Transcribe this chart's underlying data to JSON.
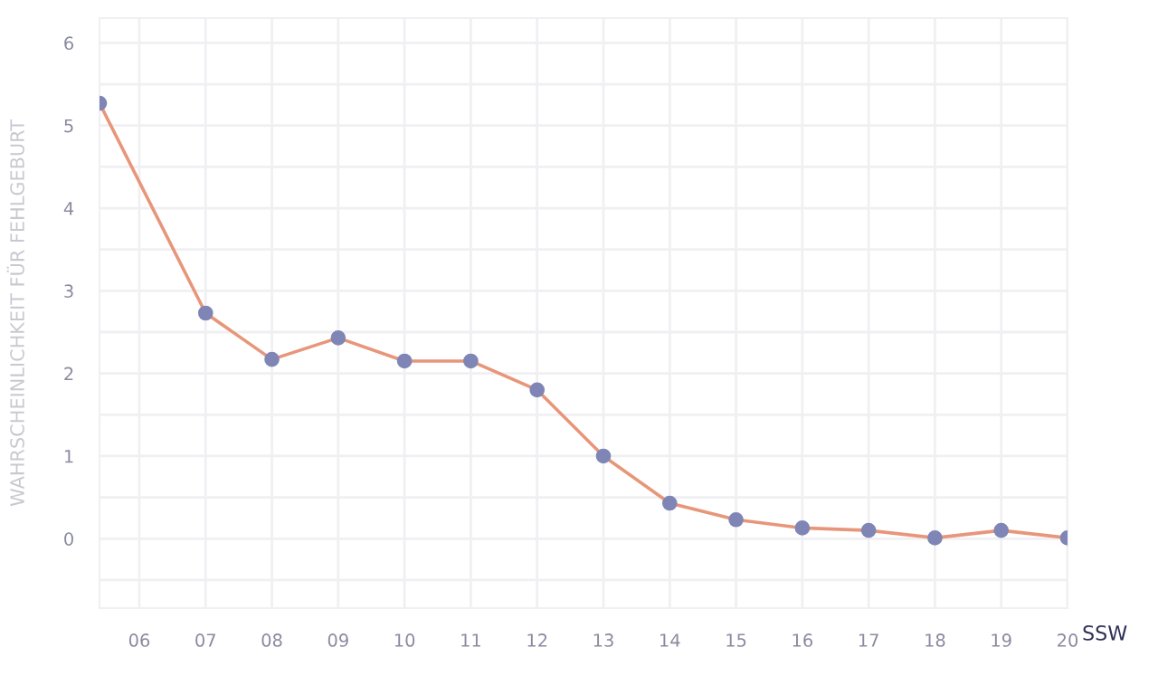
{
  "chart_data": {
    "type": "line",
    "xlabel": "SSW",
    "ylabel": "WAHRSCHEINLICHKEIT FÜR FEHLGEBURT",
    "x": [
      5.4,
      7,
      8,
      9,
      10,
      11,
      12,
      13,
      14,
      15,
      16,
      17,
      18,
      19,
      20
    ],
    "series": [
      {
        "color": "#e8967a",
        "values": [
          5.27,
          2.73,
          2.17,
          2.43,
          2.15,
          2.15,
          1.8,
          1.0,
          0.43,
          0.23,
          0.13,
          0.1,
          0.01,
          0.1,
          0.01
        ]
      }
    ],
    "marker": "circle",
    "line_style": "solid",
    "xlim": [
      5.4,
      20
    ],
    "ylim": [
      -0.84,
      6.3
    ],
    "xticks": [
      {
        "value": 6,
        "label": "06"
      },
      {
        "value": 7,
        "label": "07"
      },
      {
        "value": 8,
        "label": "08"
      },
      {
        "value": 9,
        "label": "09"
      },
      10,
      11,
      12,
      13,
      14,
      15,
      16,
      17,
      18,
      19,
      20
    ],
    "yticks": [
      {
        "value": -0.5,
        "label": null
      },
      0,
      {
        "value": 0.5,
        "label": null
      },
      1,
      {
        "value": 1.5,
        "label": null
      },
      2,
      {
        "value": 2.5,
        "label": null
      },
      3,
      {
        "value": 3.5,
        "label": null
      },
      4,
      {
        "value": 4.5,
        "label": null
      },
      5,
      {
        "value": 5.5,
        "label": null
      },
      6
    ],
    "grid": true,
    "legend": false
  }
}
